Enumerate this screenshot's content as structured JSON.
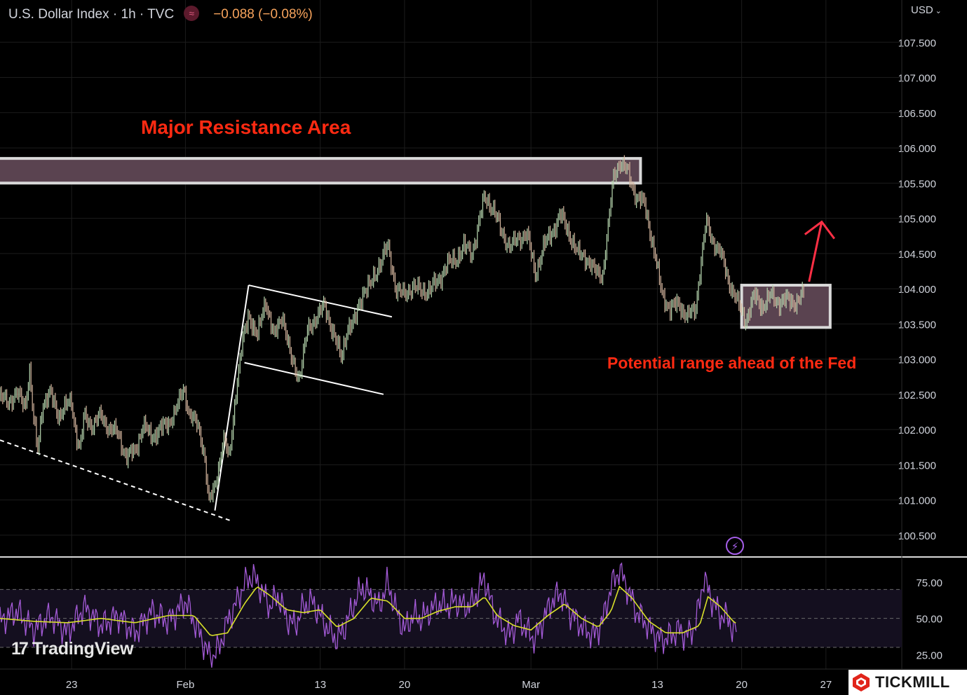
{
  "header": {
    "title": "U.S. Dollar Index · 1h · TVC",
    "change": "−0.088 (−0.08%)",
    "indicator_glyph": "≈",
    "currency": "USD"
  },
  "annotations": {
    "resistance_label": "Major Resistance Area",
    "range_label": "Potential range ahead of the Fed"
  },
  "branding": {
    "tradingview": "TradingView",
    "tradingview_mark": "17",
    "tickmill": "TICKMILL"
  },
  "colors": {
    "background": "#000000",
    "candle": "#c9b99a",
    "annotation_red": "#ff2a12",
    "zone_fill": "#5a4350",
    "rsi_line": "#a35ad6",
    "rsi_ma": "#d8e02a",
    "tickmill_red": "#e1251b"
  },
  "chart_data": {
    "type": "line",
    "title": "U.S. Dollar Index · 1h · TVC",
    "ylabel": "USD",
    "xlabel": "",
    "ylim": [
      100.2,
      108.1
    ],
    "y_ticks": [
      "100.500",
      "101.000",
      "101.500",
      "102.000",
      "102.500",
      "103.000",
      "103.500",
      "104.000",
      "104.500",
      "105.000",
      "105.500",
      "106.000",
      "106.500",
      "107.000",
      "107.500"
    ],
    "x_ticks": [
      {
        "label": "23",
        "t": 7.5
      },
      {
        "label": "Feb",
        "t": 21
      },
      {
        "label": "13",
        "t": 37
      },
      {
        "label": "20",
        "t": 47
      },
      {
        "label": "Mar",
        "t": 62
      },
      {
        "label": "13",
        "t": 77
      },
      {
        "label": "20",
        "t": 87
      },
      {
        "label": "27",
        "t": 97
      }
    ],
    "x_range": [
      -1,
      106
    ],
    "series": [
      {
        "price_path": [
          [
            -1,
            102.45
          ],
          [
            0,
            102.4
          ],
          [
            1,
            102.5
          ],
          [
            2,
            102.35
          ],
          [
            2.5,
            102.85
          ],
          [
            3,
            102.1
          ],
          [
            3.5,
            101.7
          ],
          [
            4,
            102.35
          ],
          [
            5,
            102.5
          ],
          [
            6,
            102.2
          ],
          [
            7,
            102.35
          ],
          [
            7.5,
            102.4
          ],
          [
            8,
            101.95
          ],
          [
            8.5,
            101.7
          ],
          [
            9,
            102.2
          ],
          [
            10,
            102.05
          ],
          [
            11,
            102.2
          ],
          [
            12,
            102.0
          ],
          [
            13,
            101.95
          ],
          [
            14,
            101.6
          ],
          [
            15,
            101.7
          ],
          [
            16,
            102.05
          ],
          [
            17,
            101.9
          ],
          [
            18,
            102.0
          ],
          [
            19,
            102.1
          ],
          [
            20,
            102.3
          ],
          [
            20.8,
            102.6
          ],
          [
            21.5,
            102.2
          ],
          [
            22.5,
            102.05
          ],
          [
            23.2,
            101.7
          ],
          [
            23.8,
            100.95
          ],
          [
            24.5,
            101.2
          ],
          [
            25.5,
            101.85
          ],
          [
            26.2,
            101.6
          ],
          [
            27,
            102.55
          ],
          [
            27.8,
            103.25
          ],
          [
            28.5,
            103.65
          ],
          [
            29.5,
            103.3
          ],
          [
            30.5,
            103.85
          ],
          [
            31.5,
            103.3
          ],
          [
            32.5,
            103.65
          ],
          [
            33.5,
            103.0
          ],
          [
            34.5,
            102.75
          ],
          [
            35.5,
            103.4
          ],
          [
            36.5,
            103.6
          ],
          [
            37.5,
            103.75
          ],
          [
            38.5,
            103.4
          ],
          [
            39.5,
            103.0
          ],
          [
            40.2,
            103.45
          ],
          [
            41,
            103.5
          ],
          [
            42,
            103.95
          ],
          [
            43,
            104.05
          ],
          [
            44,
            104.35
          ],
          [
            45,
            104.6
          ],
          [
            46,
            104.0
          ],
          [
            47,
            103.9
          ],
          [
            48,
            104.05
          ],
          [
            49,
            103.95
          ],
          [
            50,
            104.0
          ],
          [
            51,
            104.1
          ],
          [
            52,
            104.35
          ],
          [
            53,
            104.4
          ],
          [
            54,
            104.6
          ],
          [
            55,
            104.5
          ],
          [
            56.5,
            105.3
          ],
          [
            57.5,
            105.15
          ],
          [
            58.5,
            104.8
          ],
          [
            59.5,
            104.6
          ],
          [
            60.5,
            104.7
          ],
          [
            61.5,
            104.8
          ],
          [
            62.5,
            104.2
          ],
          [
            63.5,
            104.6
          ],
          [
            64.5,
            104.8
          ],
          [
            65.5,
            105.05
          ],
          [
            66.5,
            104.8
          ],
          [
            67.5,
            104.5
          ],
          [
            68.5,
            104.45
          ],
          [
            69.5,
            104.25
          ],
          [
            70.5,
            104.2
          ],
          [
            71.2,
            104.9
          ],
          [
            71.8,
            105.6
          ],
          [
            72.5,
            105.8
          ],
          [
            73.5,
            105.65
          ],
          [
            74.5,
            105.3
          ],
          [
            75.5,
            105.2
          ],
          [
            76.5,
            104.6
          ],
          [
            77.5,
            103.95
          ],
          [
            78.5,
            103.7
          ],
          [
            79.5,
            103.8
          ],
          [
            80.5,
            103.6
          ],
          [
            81.5,
            103.7
          ],
          [
            82.2,
            104.4
          ],
          [
            82.8,
            104.95
          ],
          [
            83.5,
            104.7
          ],
          [
            84.5,
            104.5
          ],
          [
            85.5,
            104.1
          ],
          [
            86.5,
            103.8
          ],
          [
            87.5,
            103.55
          ],
          [
            88.5,
            103.9
          ],
          [
            89.5,
            103.75
          ],
          [
            90.5,
            103.9
          ],
          [
            91.5,
            103.8
          ],
          [
            92.5,
            103.85
          ],
          [
            93.5,
            103.8
          ],
          [
            94.5,
            103.95
          ]
        ]
      }
    ],
    "resistance_zone": {
      "label": "Major Resistance Area",
      "t_start": -1,
      "t_end": 75,
      "y_low": 105.5,
      "y_high": 105.85
    },
    "range_box": {
      "label": "Potential range ahead of the Fed",
      "t_start": 87,
      "t_end": 97.5,
      "y_low": 103.45,
      "y_high": 104.05
    },
    "trendlines": [
      {
        "from": [
          -1,
          101.85
        ],
        "to": [
          26.5,
          100.7
        ],
        "style": "dashed"
      },
      {
        "from": [
          24.5,
          100.85
        ],
        "to": [
          28.5,
          104.05
        ],
        "style": "solid"
      },
      {
        "from": [
          28.5,
          104.05
        ],
        "to": [
          45.5,
          103.6
        ],
        "style": "solid"
      },
      {
        "from": [
          28,
          102.95
        ],
        "to": [
          44.5,
          102.5
        ],
        "style": "solid"
      }
    ],
    "arrow": {
      "from": [
        95,
        104.1
      ],
      "to": [
        96.5,
        104.95
      ]
    },
    "rsi": {
      "levels": [
        70,
        50,
        30
      ],
      "ylim": [
        15,
        90
      ],
      "y_ticks": [
        "25.00",
        "50.00",
        "75.00"
      ],
      "path": [
        [
          -1,
          48
        ],
        [
          1,
          55
        ],
        [
          3,
          42
        ],
        [
          5,
          52
        ],
        [
          7,
          40
        ],
        [
          9,
          58
        ],
        [
          11,
          45
        ],
        [
          13,
          52
        ],
        [
          15,
          40
        ],
        [
          17,
          55
        ],
        [
          19,
          48
        ],
        [
          21,
          62
        ],
        [
          23,
          35
        ],
        [
          24,
          22
        ],
        [
          25,
          30
        ],
        [
          26,
          48
        ],
        [
          27,
          60
        ],
        [
          28,
          74
        ],
        [
          29,
          80
        ],
        [
          30,
          70
        ],
        [
          31,
          58
        ],
        [
          32,
          66
        ],
        [
          33,
          50
        ],
        [
          34,
          45
        ],
        [
          35,
          58
        ],
        [
          36,
          62
        ],
        [
          37,
          52
        ],
        [
          38,
          42
        ],
        [
          39,
          35
        ],
        [
          40,
          45
        ],
        [
          41,
          60
        ],
        [
          42,
          72
        ],
        [
          43,
          65
        ],
        [
          44,
          58
        ],
        [
          45,
          75
        ],
        [
          46,
          55
        ],
        [
          47,
          42
        ],
        [
          48,
          52
        ],
        [
          49,
          50
        ],
        [
          50,
          55
        ],
        [
          51,
          60
        ],
        [
          52,
          58
        ],
        [
          53,
          62
        ],
        [
          54,
          58
        ],
        [
          55,
          60
        ],
        [
          56.5,
          78
        ],
        [
          57.5,
          55
        ],
        [
          58.5,
          45
        ],
        [
          59.5,
          38
        ],
        [
          60.5,
          50
        ],
        [
          61.5,
          42
        ],
        [
          62.5,
          35
        ],
        [
          63.5,
          50
        ],
        [
          64.5,
          62
        ],
        [
          65.5,
          68
        ],
        [
          66.5,
          55
        ],
        [
          67.5,
          48
        ],
        [
          68.5,
          42
        ],
        [
          69.5,
          38
        ],
        [
          70.5,
          48
        ],
        [
          71.5,
          72
        ],
        [
          72.5,
          84
        ],
        [
          73.5,
          70
        ],
        [
          74.5,
          55
        ],
        [
          75.5,
          48
        ],
        [
          76.5,
          40
        ],
        [
          77.5,
          35
        ],
        [
          78.5,
          38
        ],
        [
          79.5,
          42
        ],
        [
          80.5,
          38
        ],
        [
          81.5,
          45
        ],
        [
          82.5,
          78
        ],
        [
          83.5,
          62
        ],
        [
          84.5,
          52
        ],
        [
          85.5,
          50
        ],
        [
          86,
          40
        ],
        [
          86.5,
          44
        ]
      ],
      "ma_path": [
        [
          -1,
          50
        ],
        [
          3,
          48
        ],
        [
          7,
          47
        ],
        [
          11,
          50
        ],
        [
          15,
          47
        ],
        [
          19,
          52
        ],
        [
          22,
          52
        ],
        [
          24,
          38
        ],
        [
          26,
          40
        ],
        [
          28,
          60
        ],
        [
          29.5,
          72
        ],
        [
          31,
          66
        ],
        [
          33,
          56
        ],
        [
          35,
          54
        ],
        [
          37,
          56
        ],
        [
          39,
          44
        ],
        [
          41,
          50
        ],
        [
          43,
          64
        ],
        [
          45,
          62
        ],
        [
          47,
          50
        ],
        [
          49,
          50
        ],
        [
          51,
          55
        ],
        [
          53,
          58
        ],
        [
          55,
          58
        ],
        [
          56.5,
          65
        ],
        [
          58,
          52
        ],
        [
          60,
          45
        ],
        [
          62,
          42
        ],
        [
          64,
          52
        ],
        [
          66,
          60
        ],
        [
          68,
          50
        ],
        [
          70,
          44
        ],
        [
          71.5,
          55
        ],
        [
          72.5,
          72
        ],
        [
          74,
          64
        ],
        [
          76,
          48
        ],
        [
          78,
          40
        ],
        [
          80,
          40
        ],
        [
          82,
          45
        ],
        [
          83,
          65
        ],
        [
          84.5,
          58
        ],
        [
          86,
          48
        ],
        [
          86.5,
          46
        ]
      ]
    }
  }
}
